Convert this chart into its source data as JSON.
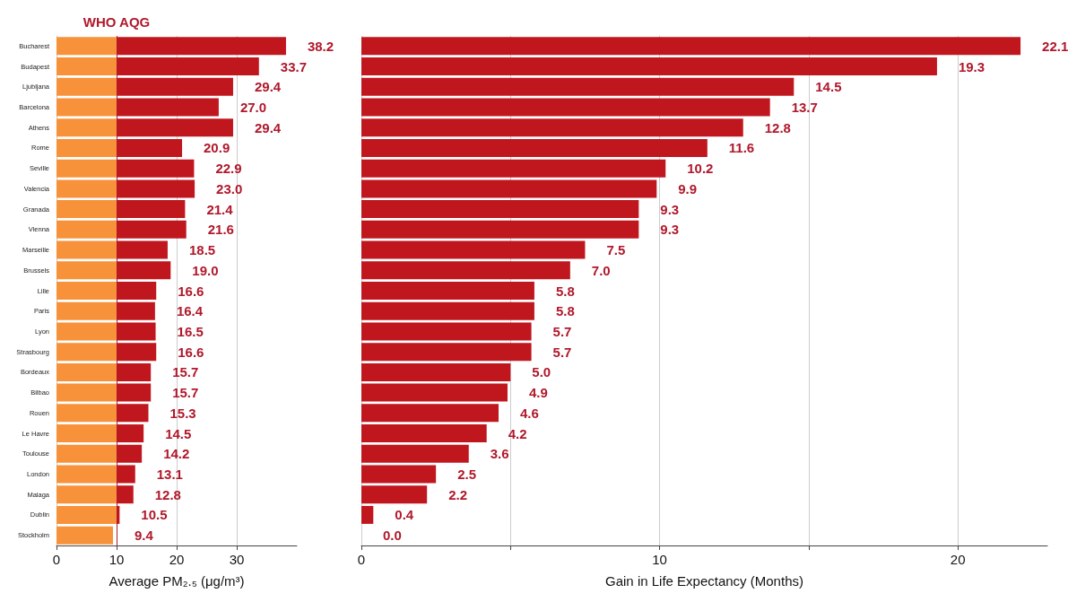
{
  "chart_data": [
    {
      "type": "bar",
      "orientation": "horizontal",
      "stacked": true,
      "xlabel": "Average PM₂.₅ (μg/m³)",
      "categories": [
        "Bucharest",
        "Budapest",
        "Ljubljana",
        "Barcelona",
        "Athens",
        "Rome",
        "Seville",
        "Valencia",
        "Granada",
        "Vienna",
        "Marseille",
        "Brussels",
        "Lille",
        "Paris",
        "Lyon",
        "Strasbourg",
        "Bordeaux",
        "Bilbao",
        "Rouen",
        "Le Havre",
        "Toulouse",
        "London",
        "Malaga",
        "Dublin",
        "Stockholm"
      ],
      "series": [
        {
          "color": "#f7923a",
          "values": [
            10,
            10,
            10,
            10,
            10,
            10,
            10,
            10,
            10,
            10,
            10,
            10,
            10,
            10,
            10,
            10,
            10,
            10,
            10,
            10,
            10,
            10,
            10,
            10,
            9.4
          ]
        },
        {
          "color": "#c0171f",
          "values": [
            28.2,
            23.7,
            19.4,
            17.0,
            19.4,
            10.9,
            12.9,
            13.0,
            11.4,
            11.6,
            8.5,
            9.0,
            6.6,
            6.4,
            6.5,
            6.6,
            5.7,
            5.7,
            5.3,
            4.5,
            4.2,
            3.1,
            2.8,
            0.5,
            null
          ]
        }
      ],
      "totals": [
        "38.2",
        "33.7",
        "29.4",
        "27.0",
        "29.4",
        "20.9",
        "22.9",
        "23.0",
        "21.4",
        "21.6",
        "18.5",
        "19.0",
        "16.6",
        "16.4",
        "16.5",
        "16.6",
        "15.7",
        "15.7",
        "15.3",
        "14.5",
        "14.2",
        "13.1",
        "12.8",
        "10.5",
        "9.4"
      ],
      "xlim": [
        0,
        40
      ],
      "xticks": [
        0,
        10,
        20,
        30
      ],
      "grid": "x",
      "ref_lines": [
        {
          "axis": "x",
          "value": 10,
          "label": "WHO AQG",
          "color": "#b0182b"
        }
      ]
    },
    {
      "type": "bar",
      "orientation": "horizontal",
      "xlabel": "Gain in Life Expectancy (Months)",
      "categories": [
        null,
        null,
        null,
        null,
        null,
        null,
        null,
        null,
        null,
        null,
        null,
        null,
        null,
        null,
        null,
        null,
        null,
        null,
        null,
        null,
        null,
        null,
        null,
        null,
        null
      ],
      "series": [
        {
          "color": "#c0171f",
          "values": [
            22.1,
            19.3,
            14.5,
            13.7,
            12.8,
            11.6,
            10.2,
            9.9,
            9.3,
            9.3,
            7.5,
            7.0,
            5.8,
            5.8,
            5.7,
            5.7,
            5.0,
            4.9,
            4.6,
            4.2,
            3.6,
            2.5,
            2.2,
            0.4,
            0.0
          ],
          "value_labels": [
            "22.1",
            "19.3",
            "14.5",
            "13.7",
            "12.8",
            "11.6",
            "10.2",
            "9.9",
            "9.3",
            "9.3",
            "7.5",
            "7.0",
            "5.8",
            "5.8",
            "5.7",
            "5.7",
            "5.0",
            "4.9",
            "4.6",
            "4.2",
            "3.6",
            "2.5",
            "2.2",
            "0.4",
            "0.0"
          ]
        }
      ],
      "xlim": [
        0,
        23
      ],
      "xticks": [
        0,
        {
          "value": 5,
          "label": null
        },
        10,
        {
          "value": 15,
          "label": null
        },
        20
      ],
      "grid": "x"
    }
  ]
}
